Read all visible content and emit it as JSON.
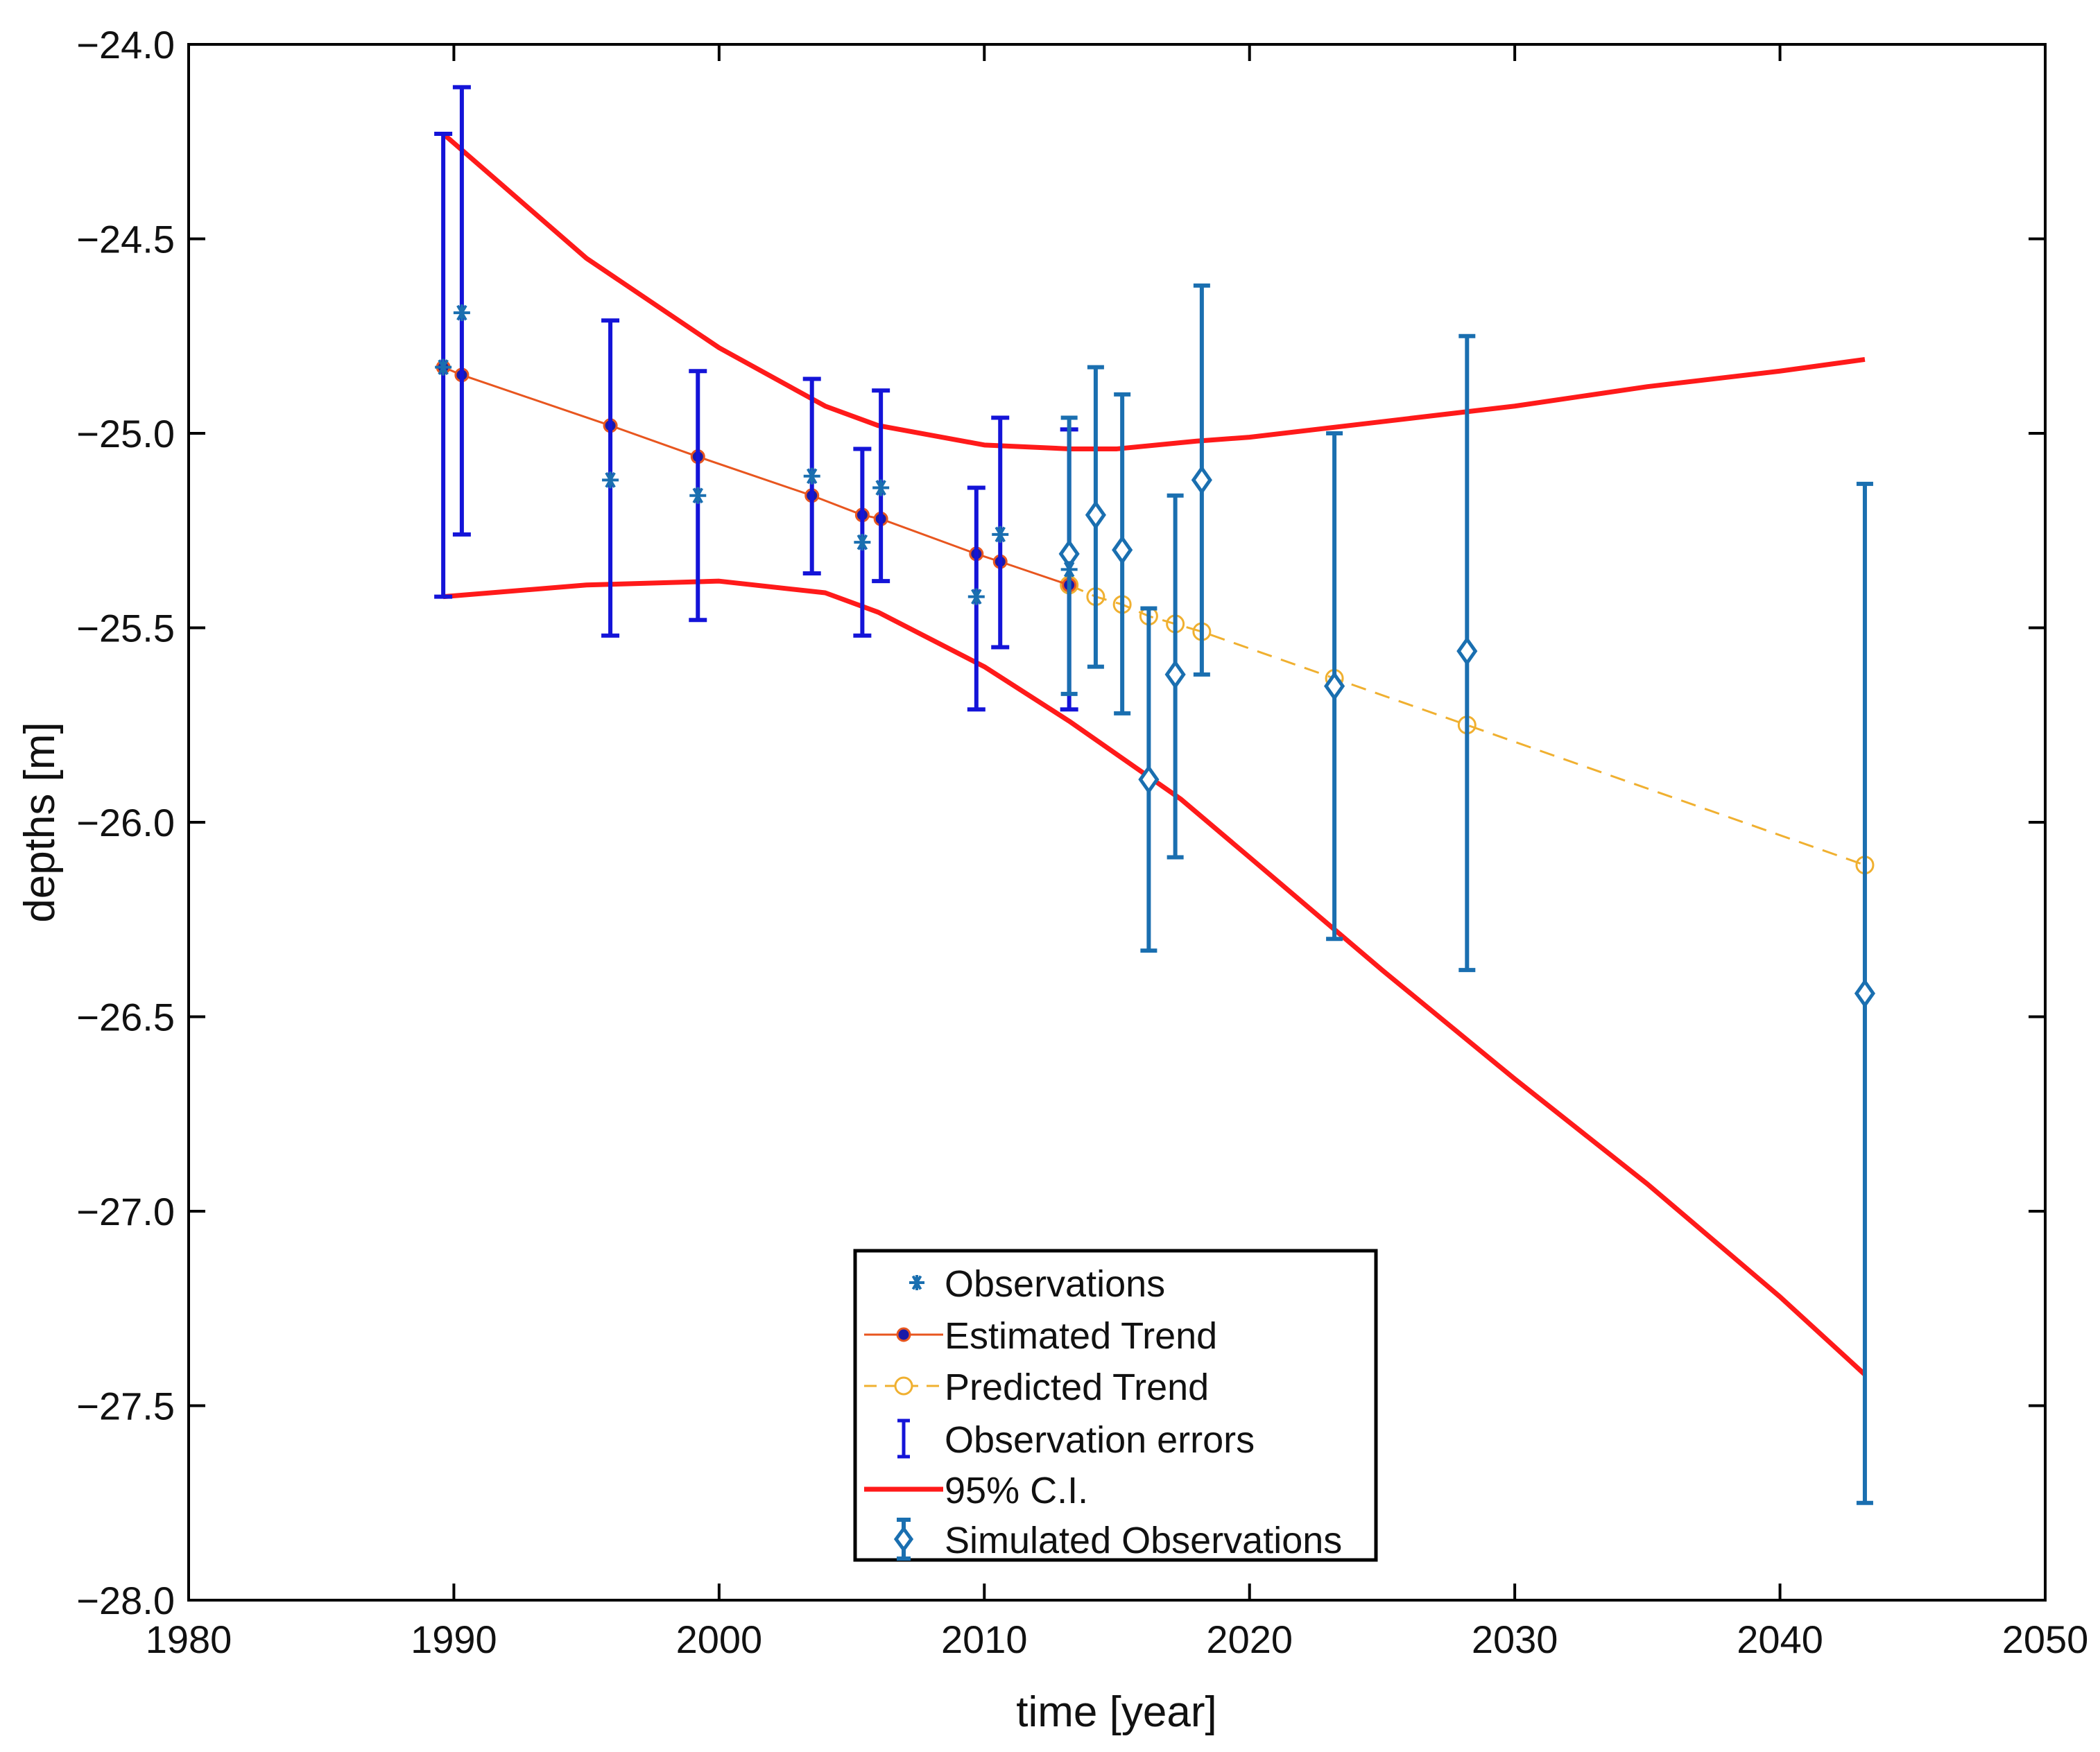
{
  "colors": {
    "observations": "#1a6fb0",
    "estimated_line": "#e8561f",
    "estimated_marker_fill": "#1a1aa8",
    "estimated_marker_edge": "#e8561f",
    "predicted": "#f0b030",
    "obs_errors": "#1414d8",
    "ci": "#ff1a1a",
    "simulated": "#1a6fb0",
    "axis": "#000000"
  },
  "chart_data": {
    "type": "scatter",
    "xlabel": "time [year]",
    "ylabel": "depths [m]",
    "xlim": [
      1980,
      2050
    ],
    "ylim": [
      -28,
      -24
    ],
    "xticks": [
      1980,
      1990,
      2000,
      2010,
      2020,
      2030,
      2040,
      2050
    ],
    "xtick_labels": [
      "1980",
      "1990",
      "2000",
      "2010",
      "2020",
      "2030",
      "2040",
      "2050"
    ],
    "yticks": [
      -24,
      -24.5,
      -25,
      -25.5,
      -26,
      -26.5,
      -27,
      -27.5,
      -28
    ],
    "ytick_labels": [
      "−24.0",
      "−24.5",
      "−25.0",
      "−25.5",
      "−26.0",
      "−26.5",
      "−27.0",
      "−27.5",
      "−28.0"
    ],
    "legend": {
      "placement": "bottom-center",
      "entries": [
        {
          "key": "observations",
          "label": "Observations"
        },
        {
          "key": "estimated",
          "label": "Estimated Trend"
        },
        {
          "key": "predicted",
          "label": "Predicted Trend"
        },
        {
          "key": "obs_errors",
          "label": "Observation errors"
        },
        {
          "key": "ci",
          "label": "95% C.I."
        },
        {
          "key": "simulated",
          "label": "Simulated Observations"
        }
      ]
    },
    "series": [
      {
        "name": "Observations",
        "marker": "asterisk",
        "x": [
          1989.6,
          1990.3,
          1995.9,
          1999.2,
          2003.5,
          2005.4,
          2006.1,
          2009.7,
          2010.6,
          2013.2
        ],
        "y": [
          -24.83,
          -24.69,
          -25.12,
          -25.16,
          -25.11,
          -25.28,
          -25.14,
          -25.42,
          -25.26,
          -25.35
        ]
      },
      {
        "name": "Estimated Trend",
        "marker": "filled-circle",
        "x": [
          1989.6,
          1990.3,
          1995.9,
          1999.2,
          2003.5,
          2005.4,
          2006.1,
          2009.7,
          2010.6,
          2013.2
        ],
        "y": [
          -24.83,
          -24.85,
          -24.98,
          -25.06,
          -25.16,
          -25.21,
          -25.22,
          -25.31,
          -25.33,
          -25.39
        ]
      },
      {
        "name": "Predicted Trend",
        "marker": "open-circle",
        "line": "dashed",
        "x": [
          2013.2,
          2014.2,
          2015.2,
          2016.2,
          2017.2,
          2018.2,
          2023.2,
          2028.2,
          2043.2
        ],
        "y": [
          -25.39,
          -25.42,
          -25.44,
          -25.47,
          -25.49,
          -25.51,
          -25.63,
          -25.75,
          -26.11
        ]
      },
      {
        "name": "Observation errors",
        "x": [
          1989.6,
          1990.3,
          1995.9,
          1999.2,
          2003.5,
          2005.4,
          2006.1,
          2009.7,
          2010.6,
          2013.2
        ],
        "lower": [
          -25.42,
          -25.26,
          -25.52,
          -25.48,
          -25.36,
          -25.52,
          -25.38,
          -25.71,
          -25.55,
          -25.71
        ],
        "upper": [
          -24.23,
          -24.11,
          -24.71,
          -24.84,
          -24.86,
          -25.04,
          -24.89,
          -25.14,
          -24.96,
          -24.99
        ]
      },
      {
        "name": "95% C.I. upper",
        "x": [
          1989.6,
          1995,
          2000,
          2004,
          2006,
          2010,
          2013.2,
          2015,
          2018,
          2020,
          2025,
          2030,
          2035,
          2040,
          2043.2
        ],
        "y": [
          -24.23,
          -24.55,
          -24.78,
          -24.93,
          -24.98,
          -25.03,
          -25.04,
          -25.04,
          -25.02,
          -25.01,
          -24.97,
          -24.93,
          -24.88,
          -24.84,
          -24.81
        ]
      },
      {
        "name": "95% C.I. lower",
        "x": [
          1989.6,
          1995,
          2000,
          2004,
          2006,
          2010,
          2013.2,
          2017.4,
          2020,
          2025,
          2030,
          2035,
          2040,
          2043.2
        ],
        "y": [
          -25.42,
          -25.39,
          -25.38,
          -25.41,
          -25.46,
          -25.6,
          -25.74,
          -25.94,
          -26.09,
          -26.38,
          -26.66,
          -26.93,
          -27.22,
          -27.42
        ]
      },
      {
        "name": "Simulated Observations",
        "marker": "open-diamond",
        "x": [
          2013.2,
          2014.2,
          2015.2,
          2016.2,
          2017.2,
          2018.2,
          2023.2,
          2028.2,
          2043.2
        ],
        "y": [
          -25.31,
          -25.21,
          -25.3,
          -25.89,
          -25.62,
          -25.12,
          -25.65,
          -25.56,
          -26.44
        ],
        "lower": [
          -25.67,
          -25.6,
          -25.72,
          -26.33,
          -26.09,
          -25.62,
          -26.3,
          -26.38,
          -27.75
        ],
        "upper": [
          -24.96,
          -24.83,
          -24.9,
          -25.45,
          -25.16,
          -24.62,
          -25.0,
          -24.75,
          -25.13
        ]
      }
    ]
  }
}
